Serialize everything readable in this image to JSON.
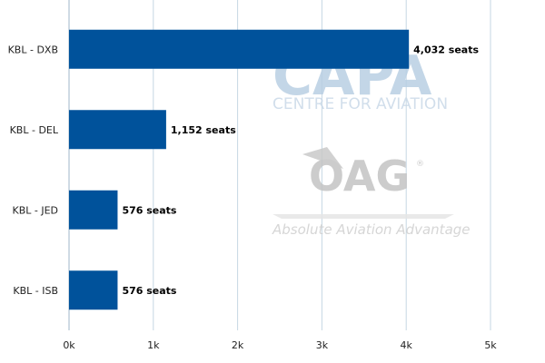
{
  "chart_data": {
    "type": "bar",
    "orientation": "horizontal",
    "title": "",
    "xlabel": "",
    "ylabel": "",
    "categories": [
      "KBL - DXB",
      "KBL - DEL",
      "KBL - JED",
      "KBL - ISB"
    ],
    "values": [
      4032,
      1152,
      576,
      576
    ],
    "data_labels": [
      "4,032 seats",
      "1,152 seats",
      "576 seats",
      "576 seats"
    ],
    "xlim": [
      0,
      5000
    ],
    "xticks": [
      0,
      1000,
      2000,
      3000,
      4000,
      5000
    ],
    "xtick_labels": [
      "0k",
      "1k",
      "2k",
      "3k",
      "4k",
      "5k"
    ],
    "grid": true,
    "bar_color": "#00529b",
    "grid_color": "#c6d7e3"
  },
  "watermarks": {
    "capa": "CAPA",
    "capa_sub": "CENTRE FOR AVIATION",
    "oag": "OAG",
    "oag_tagline": "Absolute Aviation Advantage",
    "capa_color": "#b9cfe3",
    "oag_color": "#c4c4c4"
  }
}
